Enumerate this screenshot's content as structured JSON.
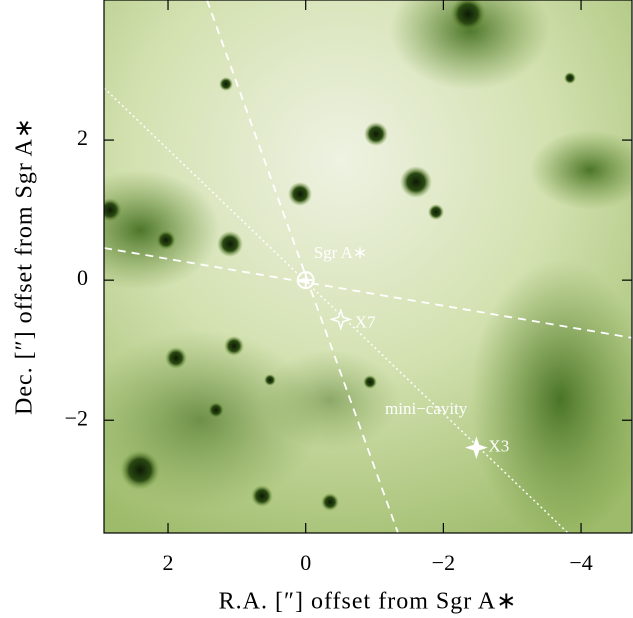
{
  "chart_data": {
    "type": "image",
    "xlabel": "R.A. [″] offset from Sgr A∗",
    "ylabel": "Dec. [″] offset from Sgr A∗",
    "xlim": [
      2.93,
      -4.74
    ],
    "ylim": [
      -3.61,
      4.0
    ],
    "xticks": [
      2,
      0,
      {
        "value": -2,
        "label": "−2"
      },
      {
        "value": -4,
        "label": "−4"
      }
    ],
    "yticks": [
      {
        "value": -2,
        "label": "−2"
      },
      0,
      2
    ],
    "sources": {
      "names": [
        "Sgr A∗",
        "X7",
        "X3"
      ],
      "x": [
        0,
        -0.51,
        -2.48
      ],
      "y": [
        0,
        -0.56,
        -2.39
      ]
    },
    "annotations": [
      "mini−cavity"
    ]
  }
}
